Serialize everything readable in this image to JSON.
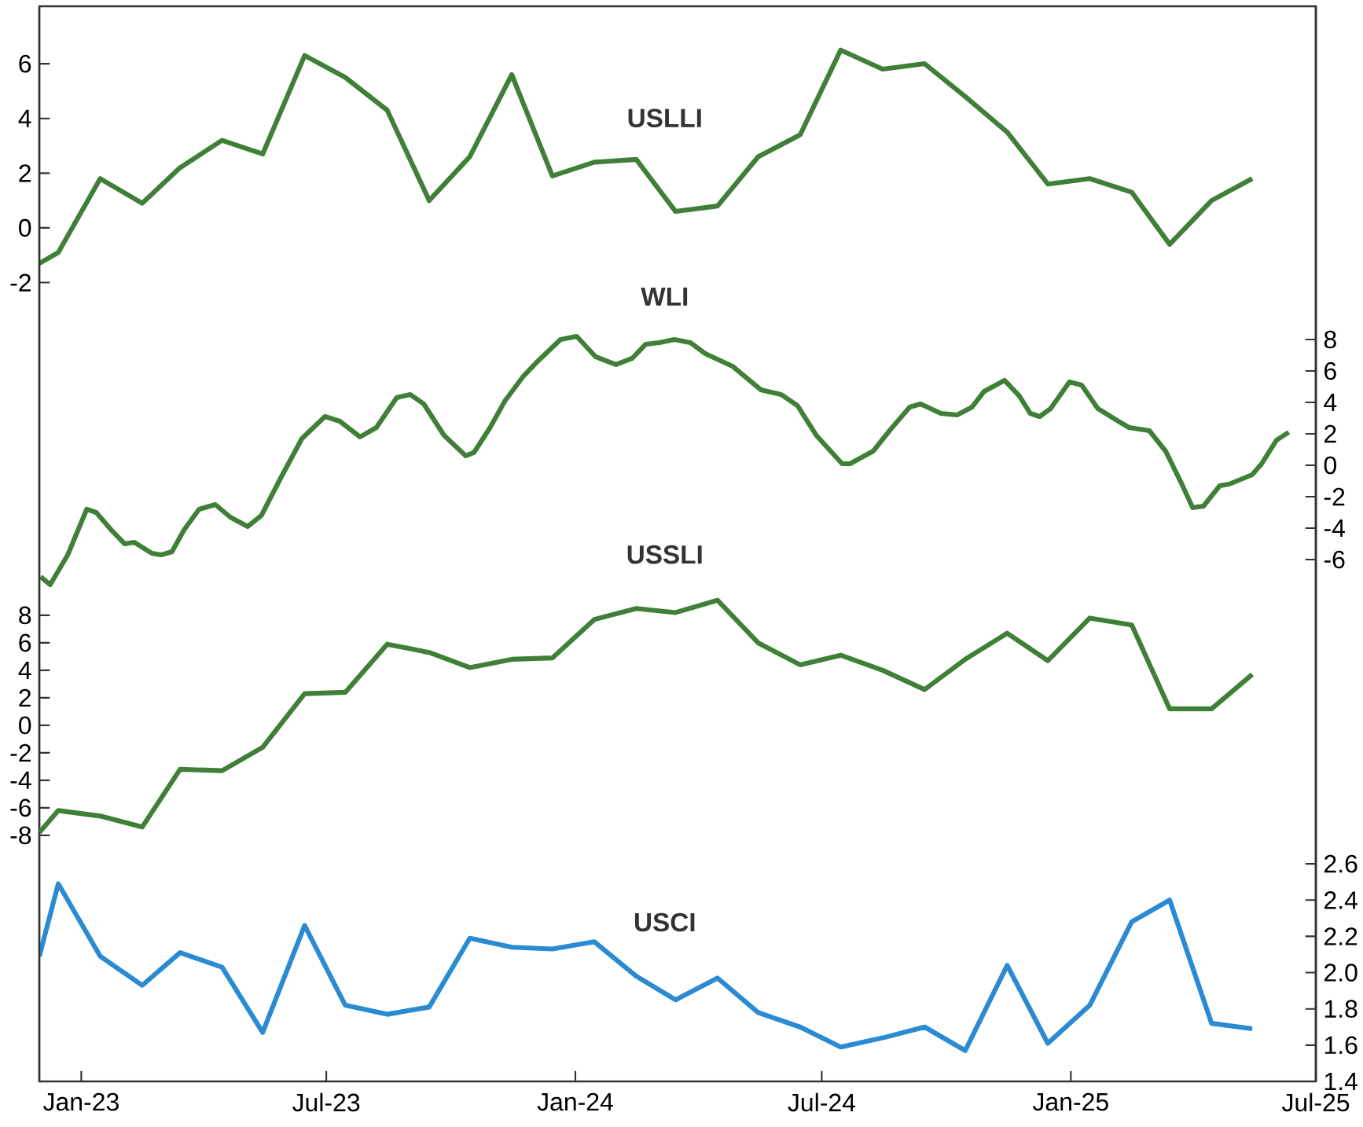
{
  "chart_data": [
    {
      "type": "line",
      "x": [
        "2022-12-01",
        "2022-12-15",
        "2023-01-15",
        "2023-02-15",
        "2023-03-15",
        "2023-04-15",
        "2023-05-15",
        "2023-06-15",
        "2023-07-15",
        "2023-08-15",
        "2023-09-15",
        "2023-10-15",
        "2023-11-15",
        "2023-12-15",
        "2024-01-15",
        "2024-02-15",
        "2024-03-15",
        "2024-04-15",
        "2024-05-15",
        "2024-06-15",
        "2024-07-15",
        "2024-08-15",
        "2024-09-15",
        "2024-10-15",
        "2024-11-15",
        "2024-12-15",
        "2025-01-15",
        "2025-02-15",
        "2025-03-15",
        "2025-04-15",
        "2025-05-15"
      ],
      "xlim": [
        "2022-12-01",
        "2025-07-01"
      ],
      "xticks": [
        {
          "value": "2023-01-01",
          "label": "Jan-23"
        },
        {
          "value": "2023-07-01",
          "label": "Jul-23"
        },
        {
          "value": "2024-01-01",
          "label": "Jan-24"
        },
        {
          "value": "2024-07-01",
          "label": "Jul-24"
        },
        {
          "value": "2025-01-01",
          "label": "Jan-25"
        },
        {
          "value": "2025-07-01",
          "label": "Jul-25"
        }
      ],
      "ylim": [
        -31.2,
        8.1
      ],
      "yticks": [
        -2,
        0,
        2,
        4,
        6
      ],
      "y2lim": [
        -39.2,
        29.2
      ],
      "y2ticks": [
        -6,
        -4,
        -2,
        0,
        2,
        4,
        6,
        8
      ],
      "y3lim": [
        1.4,
        7.33
      ],
      "y3ticks": [
        1.4,
        1.6,
        1.8,
        {
          "value": 2.0,
          "label": "2.0"
        },
        2.2,
        2.4,
        2.6
      ],
      "series": [
        {
          "name": "USLLI",
          "color": "#3f7f37",
          "values": [
            -1.3,
            -0.9,
            1.8,
            0.9,
            2.2,
            3.2,
            2.7,
            6.3,
            5.5,
            4.3,
            1.0,
            2.6,
            5.6,
            1.9,
            2.4,
            2.5,
            0.6,
            0.8,
            2.6,
            3.4,
            6.5,
            5.8,
            6.0,
            4.8,
            3.5,
            1.6,
            1.8,
            1.3,
            -0.6,
            1.0,
            1.8
          ]
        },
        {
          "name": "WLI",
          "color": "#3f7f37",
          "axis": "y2",
          "x": [
            "2022-12-02",
            "2022-12-09",
            "2022-12-22",
            "2023-01-05",
            "2023-01-12",
            "2023-01-24",
            "2023-02-02",
            "2023-02-09",
            "2023-02-22",
            "2023-03-01",
            "2023-03-09",
            "2023-03-18",
            "2023-03-29",
            "2023-04-10",
            "2023-04-21",
            "2023-05-04",
            "2023-05-14",
            "2023-05-29",
            "2023-06-13",
            "2023-06-30",
            "2023-07-11",
            "2023-07-26",
            "2023-08-07",
            "2023-08-22",
            "2023-09-01",
            "2023-09-11",
            "2023-09-26",
            "2023-10-12",
            "2023-10-18",
            "2023-10-30",
            "2023-11-10",
            "2023-11-23",
            "2023-12-04",
            "2023-12-21",
            "2024-01-02",
            "2024-01-16",
            "2024-01-31",
            "2024-02-12",
            "2024-02-22",
            "2024-03-03",
            "2024-03-14",
            "2024-03-26",
            "2024-04-06",
            "2024-04-26",
            "2024-05-17",
            "2024-06-01",
            "2024-06-13",
            "2024-06-27",
            "2024-07-16",
            "2024-07-22",
            "2024-08-08",
            "2024-08-21",
            "2024-09-04",
            "2024-09-12",
            "2024-09-27",
            "2024-10-09",
            "2024-10-20",
            "2024-10-29",
            "2024-11-13",
            "2024-11-24",
            "2024-12-02",
            "2024-12-09",
            "2024-12-17",
            "2024-12-31",
            "2025-01-09",
            "2025-01-21",
            "2025-02-05",
            "2025-02-13",
            "2025-02-28",
            "2025-03-12",
            "2025-03-24",
            "2025-04-01",
            "2025-04-09",
            "2025-04-21",
            "2025-04-28",
            "2025-05-15",
            "2025-05-22",
            "2025-06-02",
            "2025-06-11"
          ],
          "values": [
            -7.1,
            -7.6,
            -5.7,
            -2.8,
            -3.0,
            -4.2,
            -5.0,
            -4.9,
            -5.6,
            -5.7,
            -5.5,
            -4.1,
            -2.8,
            -2.5,
            -3.3,
            -3.9,
            -3.2,
            -0.7,
            1.7,
            3.1,
            2.8,
            1.8,
            2.4,
            4.3,
            4.5,
            3.9,
            1.9,
            0.6,
            0.8,
            2.4,
            4.1,
            5.6,
            6.6,
            8.0,
            8.2,
            6.9,
            6.4,
            6.8,
            7.7,
            7.8,
            8.0,
            7.8,
            7.1,
            6.3,
            4.8,
            4.5,
            3.8,
            1.9,
            0.1,
            0.1,
            0.9,
            2.3,
            3.7,
            3.9,
            3.3,
            3.2,
            3.7,
            4.7,
            5.4,
            4.4,
            3.3,
            3.1,
            3.6,
            5.3,
            5.1,
            3.6,
            2.8,
            2.4,
            2.2,
            0.9,
            -1.2,
            -2.7,
            -2.6,
            -1.3,
            -1.2,
            -0.6,
            0.1,
            1.6,
            2.1
          ]
        },
        {
          "name": "USCI",
          "color": "#2a8ad2",
          "axis": "y3",
          "values": [
            2.09,
            2.49,
            2.09,
            1.93,
            2.11,
            2.03,
            1.67,
            2.26,
            1.82,
            1.77,
            1.81,
            2.19,
            2.14,
            2.13,
            2.17,
            1.98,
            1.85,
            1.97,
            1.78,
            1.7,
            1.59,
            1.64,
            1.7,
            1.57,
            2.04,
            1.61,
            1.82,
            2.28,
            2.4,
            1.72,
            1.69
          ]
        }
      ]
    },
    {
      "type": "line",
      "x": [
        "2022-12-01",
        "2022-12-15",
        "2023-01-15",
        "2023-02-15",
        "2023-03-15",
        "2023-04-15",
        "2023-05-15",
        "2023-06-15",
        "2023-07-15",
        "2023-08-15",
        "2023-09-15",
        "2023-10-15",
        "2023-11-15",
        "2023-12-15",
        "2024-01-15",
        "2024-02-15",
        "2024-03-15",
        "2024-04-15",
        "2024-05-15",
        "2024-06-15",
        "2024-07-15",
        "2024-08-15",
        "2024-09-15",
        "2024-10-15",
        "2024-11-15",
        "2024-12-15",
        "2025-01-15",
        "2025-02-15",
        "2025-03-15",
        "2025-04-15",
        "2025-05-15"
      ],
      "xlim": [
        "2022-12-01",
        "2025-07-01"
      ],
      "tick_labels": "y",
      "ylim": [
        -25.9,
        52.3
      ],
      "yticks": [
        -8,
        -6,
        -4,
        -2,
        0,
        2,
        4,
        6,
        8
      ],
      "series": [
        {
          "name": "USSLI",
          "color": "#3f7f37",
          "values": [
            -7.8,
            -6.2,
            -6.6,
            -7.4,
            -3.2,
            -3.3,
            -1.6,
            2.3,
            2.4,
            5.9,
            5.3,
            4.2,
            4.8,
            4.9,
            7.7,
            8.5,
            8.2,
            9.1,
            6.0,
            4.4,
            5.1,
            4.0,
            2.6,
            4.8,
            6.7,
            4.7,
            7.8,
            7.3,
            1.2,
            1.2,
            3.7
          ]
        }
      ]
    }
  ]
}
